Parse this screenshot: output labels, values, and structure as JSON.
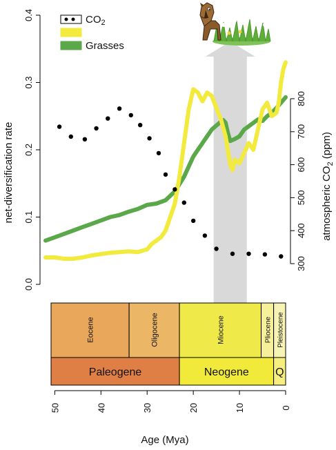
{
  "chart_data": {
    "type": "line",
    "xlabel": "Age (Mya)",
    "ylabel_left": "net-diversification rate",
    "ylabel_right_prefix": "atmospheric CO",
    "ylabel_right_sub": "2",
    "ylabel_right_suffix": " (ppm)",
    "x_reversed": true,
    "xlim": [
      52,
      0
    ],
    "x_ticks": [
      "50",
      "40",
      "30",
      "20",
      "10",
      "0"
    ],
    "x_tick_values": [
      50,
      40,
      30,
      20,
      10,
      0
    ],
    "ylim_left": [
      0,
      0.4
    ],
    "y_left_ticks": [
      "0.0",
      "0.1",
      "0.2",
      "0.3",
      "0.4"
    ],
    "y_left_tick_values": [
      0,
      0.1,
      0.2,
      0.3,
      0.4
    ],
    "ylim_right": [
      260,
      800
    ],
    "y_right_ticks": [
      "300",
      "400",
      "500",
      "600",
      "700",
      "800"
    ],
    "y_right_tick_values": [
      300,
      400,
      500,
      600,
      700,
      800
    ],
    "legend": {
      "position": "top-left",
      "entries": [
        {
          "label_main": "CO",
          "label_sub": "2",
          "style": "dots",
          "color": "#000000"
        },
        {
          "label_main": "",
          "label_sub": "",
          "style": "box",
          "color": "#f2ea3c"
        },
        {
          "label_main": "Grasses",
          "label_sub": "",
          "style": "box",
          "color": "#5aa84a"
        }
      ]
    },
    "series": [
      {
        "name": "Grasses",
        "axis": "left",
        "style": "line",
        "color": "#5aa84a",
        "x": [
          52,
          50,
          48,
          46,
          44,
          42,
          40,
          38,
          36,
          34,
          32,
          30,
          28,
          26,
          24,
          22,
          21,
          20,
          19,
          18,
          17,
          16,
          15,
          14,
          13.5,
          13,
          12.5,
          12,
          11,
          10,
          9,
          8,
          7,
          6,
          5,
          4,
          3,
          2,
          1,
          0
        ],
        "values": [
          0.065,
          0.07,
          0.075,
          0.08,
          0.085,
          0.09,
          0.095,
          0.1,
          0.103,
          0.108,
          0.112,
          0.118,
          0.12,
          0.125,
          0.138,
          0.16,
          0.175,
          0.19,
          0.2,
          0.21,
          0.22,
          0.23,
          0.236,
          0.242,
          0.244,
          0.24,
          0.225,
          0.213,
          0.216,
          0.22,
          0.23,
          0.235,
          0.24,
          0.245,
          0.243,
          0.25,
          0.255,
          0.262,
          0.27,
          0.278
        ]
      },
      {
        "name": "",
        "axis": "left",
        "style": "line",
        "color": "#f2ea3c",
        "x": [
          52,
          50,
          48,
          46,
          44,
          42,
          40,
          38,
          36,
          34,
          32,
          30,
          29,
          28,
          27,
          26,
          25,
          24,
          23,
          22,
          21,
          20,
          19,
          18,
          17,
          16,
          15,
          14,
          13,
          12,
          11.5,
          11,
          10,
          9,
          8,
          7,
          6,
          5,
          4,
          3,
          2,
          1.5,
          1,
          0.5,
          0
        ],
        "values": [
          0.04,
          0.04,
          0.038,
          0.038,
          0.04,
          0.043,
          0.045,
          0.047,
          0.048,
          0.049,
          0.048,
          0.052,
          0.06,
          0.065,
          0.07,
          0.08,
          0.1,
          0.12,
          0.16,
          0.21,
          0.26,
          0.29,
          0.285,
          0.272,
          0.285,
          0.28,
          0.262,
          0.245,
          0.22,
          0.178,
          0.17,
          0.185,
          0.18,
          0.195,
          0.21,
          0.2,
          0.23,
          0.26,
          0.27,
          0.25,
          0.255,
          0.27,
          0.3,
          0.32,
          0.33
        ]
      },
      {
        "name": "CO2",
        "axis": "right",
        "style": "dots",
        "color": "#000000",
        "x": [
          49,
          46.5,
          43.5,
          41,
          38.5,
          36,
          33.5,
          31.5,
          29.5,
          27.5,
          26,
          24,
          22,
          20,
          17.5,
          15,
          11.5,
          8,
          4.5,
          1
        ],
        "values": [
          715,
          685,
          677,
          710,
          740,
          770,
          750,
          720,
          680,
          635,
          570,
          525,
          485,
          430,
          385,
          345,
          330,
          330,
          328,
          322
        ]
      }
    ]
  },
  "gray_arrow": {
    "color": "#d9d9d9",
    "x_center": 12,
    "x_half_width": 3.6
  },
  "timescale": {
    "epochs": [
      {
        "label": "Eocene",
        "start": 56,
        "end": 33.9,
        "color": "#e8a75a"
      },
      {
        "label": "Oligocene",
        "start": 33.9,
        "end": 23,
        "color": "#ebb767"
      },
      {
        "label": "Miocene",
        "start": 23,
        "end": 5.3,
        "color": "#f0e94a"
      },
      {
        "label": "Pliocene",
        "start": 5.3,
        "end": 2.6,
        "color": "#f7f09a"
      },
      {
        "label": "Pleistocene",
        "start": 2.6,
        "end": 0,
        "color": "#f7f3b5"
      }
    ],
    "periods": [
      {
        "label": "Paleogene",
        "start": 56,
        "end": 23,
        "color": "#e07f45"
      },
      {
        "label": "Neogene",
        "start": 23,
        "end": 2.6,
        "color": "#f1ea3a"
      },
      {
        "label": "Q",
        "start": 2.6,
        "end": 0,
        "color": "#f6ef7f"
      }
    ]
  }
}
